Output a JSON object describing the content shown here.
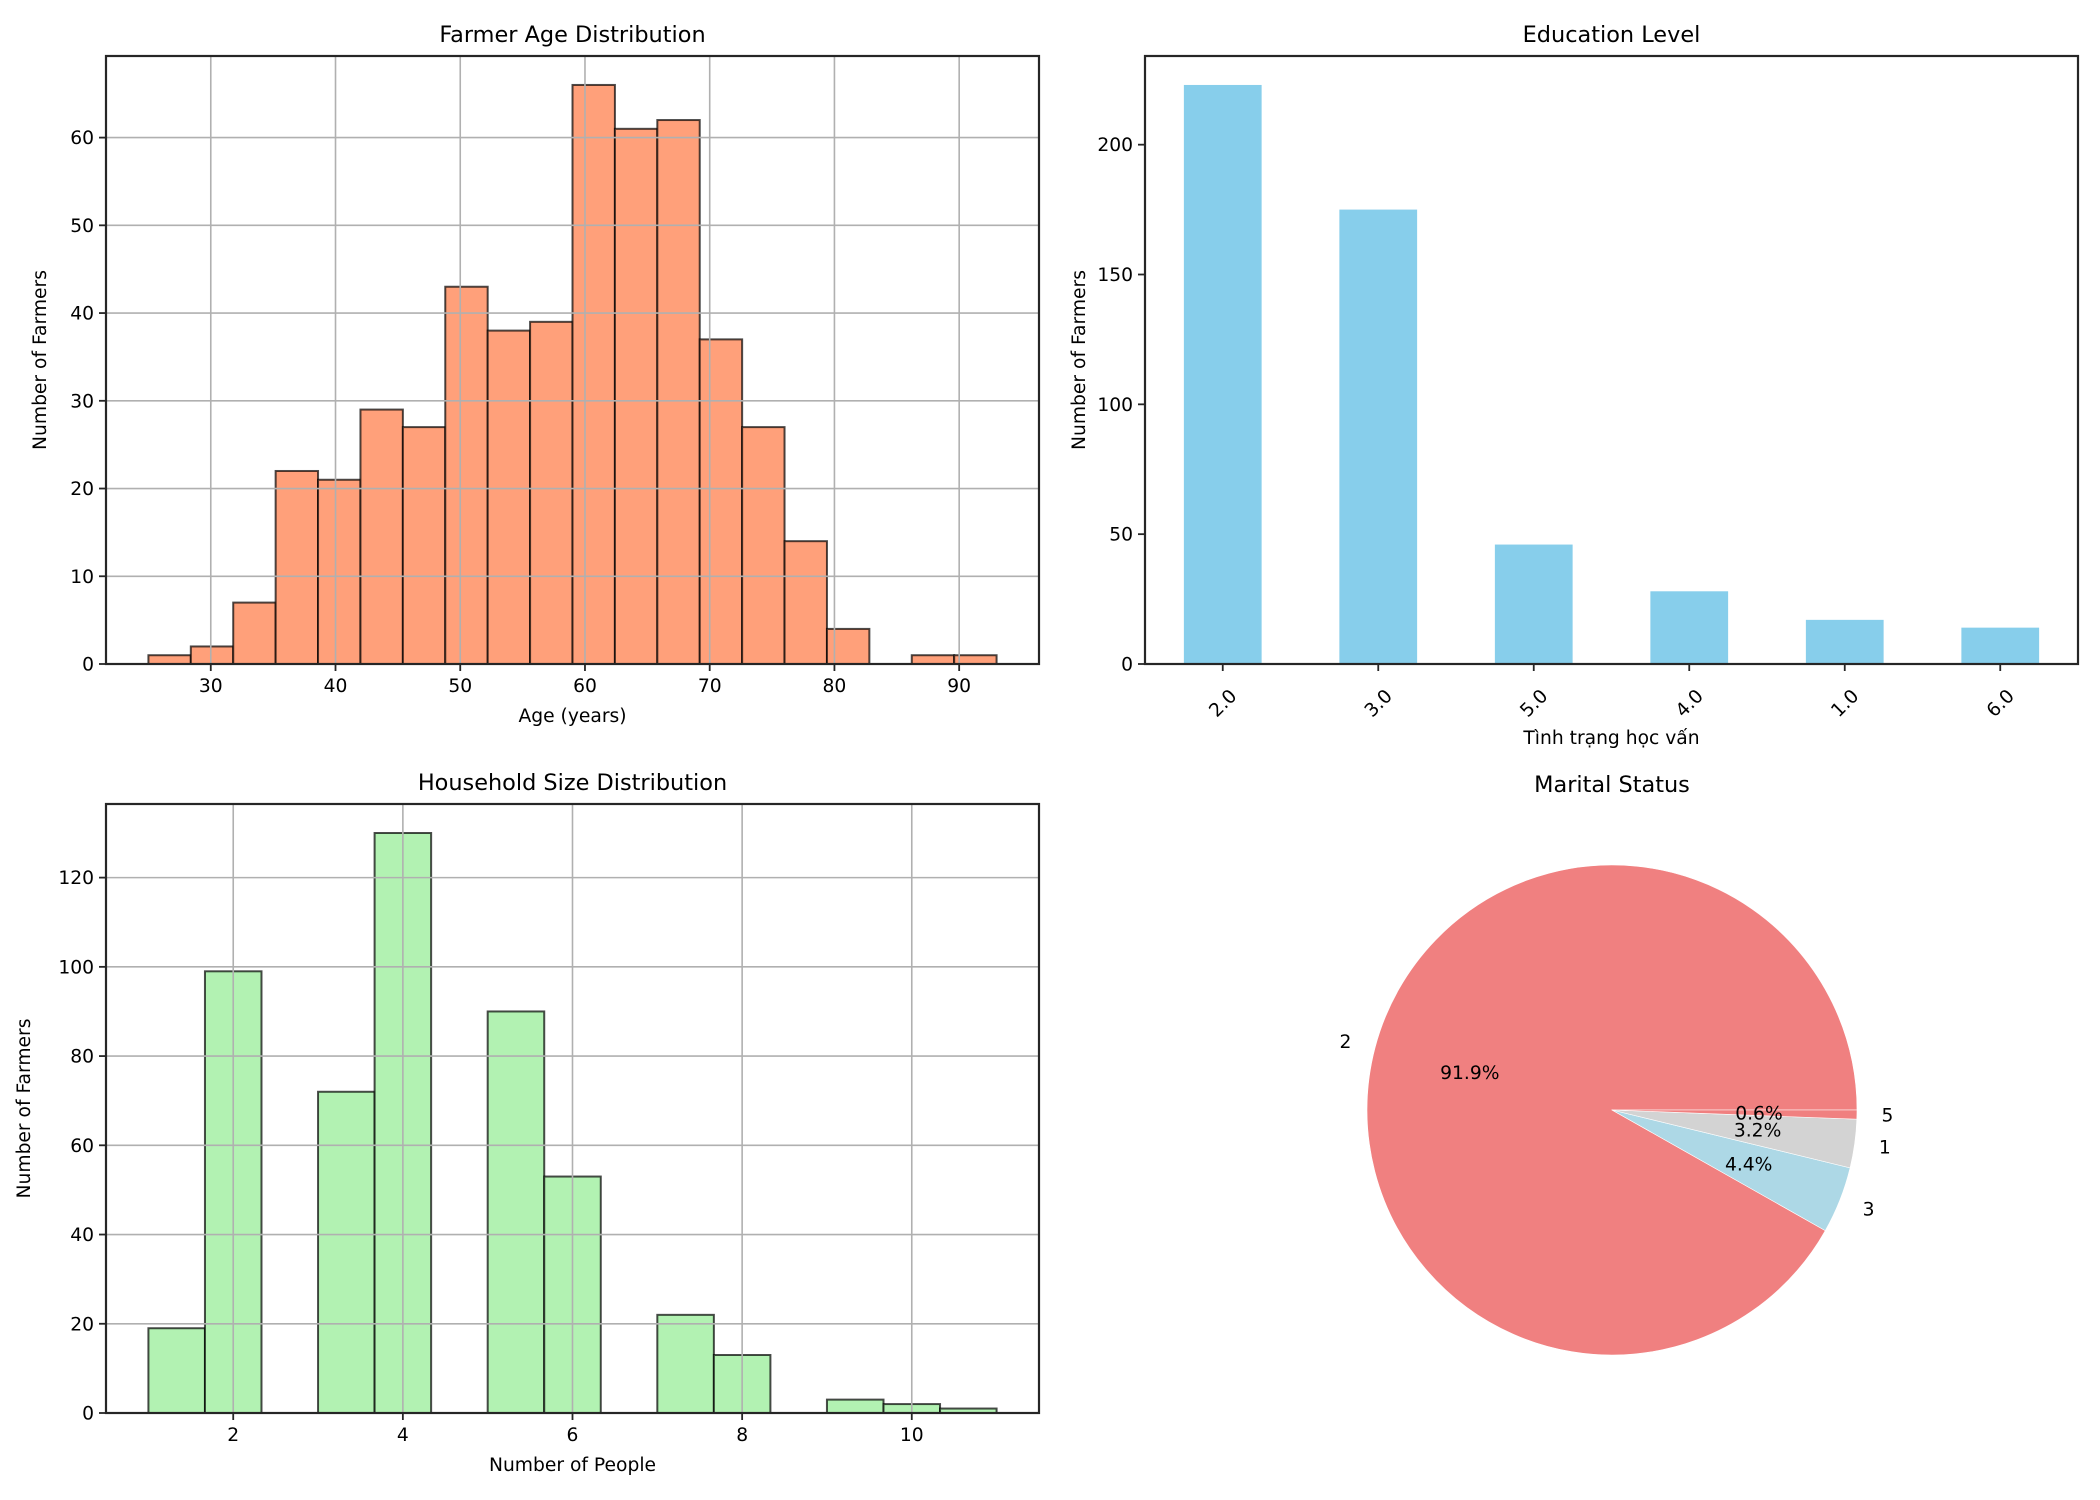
{
  "chart_data": [
    {
      "id": "age",
      "type": "bar",
      "subtype": "histogram",
      "title": "Farmer Age Distribution",
      "xlabel": "Age (years)",
      "ylabel": "Number of Farmers",
      "bin_edges": [
        25,
        28.4,
        31.8,
        35.2,
        38.6,
        42,
        45.4,
        48.8,
        52.2,
        55.6,
        59,
        62.4,
        65.8,
        69.2,
        72.6,
        76,
        79.4,
        82.8,
        86.2,
        89.6,
        93
      ],
      "values": [
        1,
        2,
        7,
        22,
        21,
        29,
        27,
        43,
        38,
        39,
        66,
        61,
        62,
        37,
        27,
        14,
        4,
        0,
        1,
        1
      ],
      "xlim": [
        21.6,
        96.4
      ],
      "ylim": [
        0,
        69.3
      ],
      "xticks": [
        30,
        40,
        50,
        60,
        70,
        80,
        90
      ],
      "yticks": [
        0,
        10,
        20,
        30,
        40,
        50,
        60
      ],
      "grid": true,
      "color": "#FFA07A",
      "edgecolor": "#000000"
    },
    {
      "id": "education",
      "type": "bar",
      "title": "Education Level",
      "xlabel": "Tình trạng học vấn",
      "ylabel": "Number of Farmers",
      "categories": [
        "2.0",
        "3.0",
        "5.0",
        "4.0",
        "1.0",
        "6.0"
      ],
      "values": [
        223,
        175,
        46,
        28,
        17,
        14
      ],
      "ylim": [
        0,
        234.15
      ],
      "yticks": [
        0,
        50,
        100,
        150,
        200
      ],
      "xtick_rotation": 45,
      "grid": false,
      "color": "#87CEEB"
    },
    {
      "id": "household",
      "type": "bar",
      "subtype": "histogram",
      "title": "Household Size Distribution",
      "xlabel": "Number of People",
      "ylabel": "Number of Farmers",
      "bin_edges": [
        1,
        1.6667,
        2.3333,
        3,
        3.6667,
        4.3333,
        5,
        5.6667,
        6.3333,
        7,
        7.6667,
        8.3333,
        9,
        9.6667,
        10.3333,
        11
      ],
      "values": [
        19,
        99,
        0,
        72,
        130,
        0,
        90,
        53,
        0,
        22,
        13,
        0,
        3,
        2,
        1
      ],
      "xlim": [
        0.5,
        11.5
      ],
      "ylim": [
        0,
        136.5
      ],
      "xticks": [
        2,
        4,
        6,
        8,
        10
      ],
      "yticks": [
        0,
        20,
        40,
        60,
        80,
        100,
        120
      ],
      "grid": true,
      "color": "#B2F2B2",
      "edgecolor": "#000000"
    },
    {
      "id": "marital",
      "type": "pie",
      "title": "Marital Status",
      "labels": [
        "2",
        "3",
        "1",
        "5"
      ],
      "values": [
        91.9,
        4.4,
        3.2,
        0.6
      ],
      "value_labels": [
        "91.9%",
        "4.4%",
        "3.2%",
        "0.6%"
      ],
      "colors": [
        "#F08080",
        "#ADD8E6",
        "#D3D3D3",
        "#F08080"
      ],
      "start_angle_deg": 0,
      "direction": "counterclockwise"
    }
  ]
}
